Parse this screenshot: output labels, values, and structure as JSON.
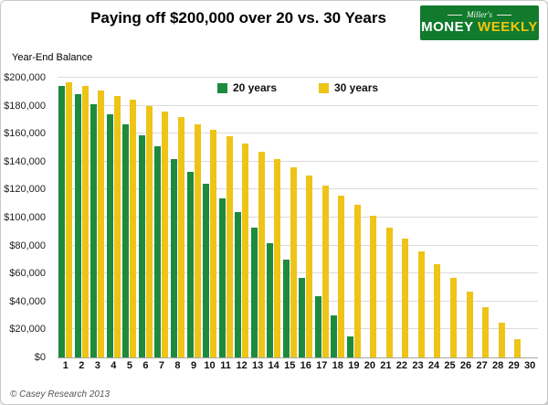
{
  "page": {
    "footer": "© Casey Research 2013"
  },
  "logo": {
    "brand_top": "Miller's",
    "brand_main_1": "MONEY",
    "brand_main_2": "WEEKLY",
    "bg_color": "#117a2d",
    "money_color": "#ffffff",
    "weekly_color": "#f3c50f"
  },
  "chart_data": {
    "type": "bar",
    "title": "Paying off $200,000 over 20 vs. 30 Years",
    "ylabel": "Year-End Balance",
    "xlabel": "",
    "ylim": [
      0,
      200000
    ],
    "ytick_step": 20000,
    "ytick_labels": [
      "$0",
      "$20,000",
      "$40,000",
      "$60,000",
      "$80,000",
      "$100,000",
      "$120,000",
      "$140,000",
      "$160,000",
      "$180,000",
      "$200,000"
    ],
    "grid": true,
    "legend_position": "top-center-inside",
    "categories": [
      1,
      2,
      3,
      4,
      5,
      6,
      7,
      8,
      9,
      10,
      11,
      12,
      13,
      14,
      15,
      16,
      17,
      18,
      19,
      20,
      21,
      22,
      23,
      24,
      25,
      26,
      27,
      28,
      29,
      30
    ],
    "series": [
      {
        "name": "20 years",
        "color": "#1d8a3d",
        "values": [
          194000,
          188000,
          181000,
          174000,
          167000,
          159000,
          151000,
          142000,
          133000,
          124000,
          114000,
          104000,
          93000,
          82000,
          70000,
          57000,
          44000,
          30000,
          15000,
          0,
          0,
          0,
          0,
          0,
          0,
          0,
          0,
          0,
          0,
          0
        ]
      },
      {
        "name": "30 years",
        "color": "#eec417",
        "values": [
          197000,
          194000,
          191000,
          187000,
          184000,
          180000,
          176000,
          172000,
          167000,
          163000,
          158000,
          153000,
          147000,
          142000,
          136000,
          130000,
          123000,
          116000,
          109000,
          101000,
          93000,
          85000,
          76000,
          67000,
          57000,
          47000,
          36000,
          25000,
          13000,
          0
        ]
      }
    ]
  }
}
